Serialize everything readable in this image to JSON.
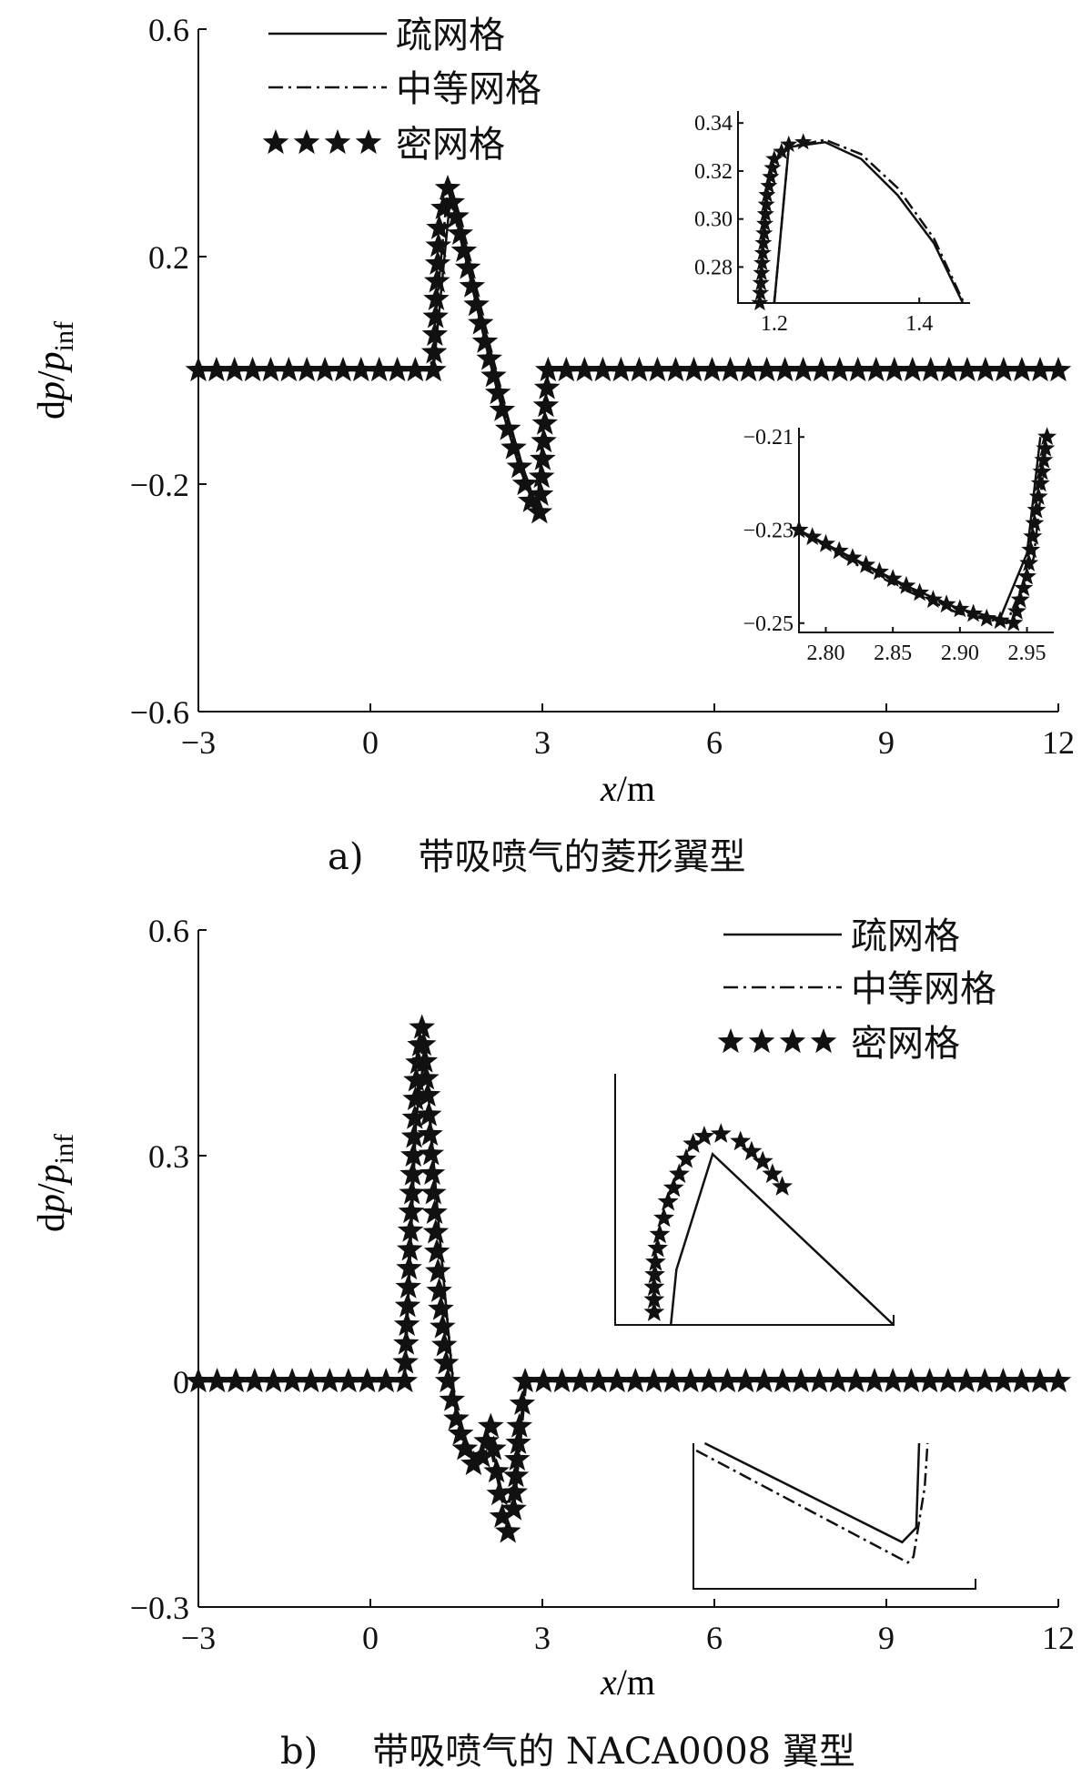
{
  "chart_data": [
    {
      "type": "line",
      "panel": "a",
      "caption_label": "a)",
      "caption": "带吸喷气的菱形翼型",
      "xlabel_italic": "x",
      "xlabel_unit": "/m",
      "ylabel_main": "d",
      "ylabel_p": "p",
      "ylabel_slash": "/",
      "ylabel_sub": "inf",
      "xlim": [
        -3,
        12
      ],
      "ylim": [
        -0.6,
        0.6
      ],
      "xticks": [
        "−3",
        "0",
        "3",
        "6",
        "9",
        "12"
      ],
      "yticks": [
        "0.6",
        "0.2",
        "−0.2",
        "−0.6"
      ],
      "legend": [
        "疏网格",
        "中等网格",
        "密网格"
      ],
      "series": [
        {
          "name": "疏网格",
          "style": "solid",
          "x": [
            -3,
            1.1,
            1.4,
            1.7,
            2.0,
            2.3,
            2.6,
            2.9,
            3.1,
            12
          ],
          "y": [
            0,
            0,
            0.31,
            0.18,
            0.05,
            -0.07,
            -0.17,
            -0.25,
            0,
            0
          ]
        },
        {
          "name": "中等网格",
          "style": "dashdot",
          "x": [
            -3,
            1.05,
            1.35,
            1.7,
            2.0,
            2.3,
            2.6,
            2.92,
            3.1,
            12
          ],
          "y": [
            0,
            0,
            0.32,
            0.18,
            0.05,
            -0.07,
            -0.17,
            -0.25,
            0,
            0
          ]
        },
        {
          "name": "密网格",
          "style": "stars",
          "x": [
            -3,
            1.1,
            1.2,
            1.35,
            1.5,
            1.7,
            2.0,
            2.3,
            2.6,
            2.8,
            2.95,
            3.1,
            12
          ],
          "y": [
            0,
            0,
            0.25,
            0.32,
            0.27,
            0.18,
            0.05,
            -0.07,
            -0.17,
            -0.23,
            -0.25,
            0,
            0
          ]
        }
      ],
      "insets": [
        {
          "xlim": [
            1.15,
            1.47
          ],
          "ylim": [
            0.265,
            0.345
          ],
          "xticks": [
            "1.2",
            "1.4"
          ],
          "yticks": [
            "0.34",
            "0.32",
            "0.30",
            "0.28"
          ],
          "series": [
            {
              "name": "疏网格",
              "x": [
                1.2,
                1.22,
                1.27,
                1.32,
                1.37,
                1.42,
                1.46
              ],
              "y": [
                0.265,
                0.33,
                0.332,
                0.325,
                0.31,
                0.29,
                0.265
              ]
            },
            {
              "name": "中等网格",
              "x": [
                1.2,
                1.22,
                1.27,
                1.32,
                1.37,
                1.42,
                1.46
              ],
              "y": [
                0.265,
                0.33,
                0.333,
                0.327,
                0.313,
                0.292,
                0.266
              ]
            },
            {
              "name": "密网格",
              "x": [
                1.18,
                1.185,
                1.19,
                1.2,
                1.22,
                1.24
              ],
              "y": [
                0.265,
                0.29,
                0.31,
                0.325,
                0.331,
                0.332
              ]
            }
          ]
        },
        {
          "xlim": [
            2.78,
            2.97
          ],
          "ylim": [
            -0.252,
            -0.208
          ],
          "xticks": [
            "2.80",
            "2.85",
            "2.90",
            "2.95"
          ],
          "yticks": [
            "−0.21",
            "−0.23",
            "−0.25"
          ],
          "series": [
            {
              "name": "疏网格",
              "x": [
                2.78,
                2.82,
                2.86,
                2.9,
                2.93,
                2.95,
                2.96
              ],
              "y": [
                -0.23,
                -0.236,
                -0.242,
                -0.247,
                -0.249,
                -0.235,
                -0.21
              ]
            },
            {
              "name": "中等网格",
              "x": [
                2.78,
                2.82,
                2.86,
                2.9,
                2.935,
                2.955,
                2.965
              ],
              "y": [
                -0.23,
                -0.237,
                -0.243,
                -0.248,
                -0.25,
                -0.236,
                -0.21
              ]
            },
            {
              "name": "密网格",
              "x": [
                2.78,
                2.8,
                2.82,
                2.84,
                2.86,
                2.88,
                2.9,
                2.92,
                2.94,
                2.95,
                2.96,
                2.965
              ],
              "y": [
                -0.23,
                -0.233,
                -0.236,
                -0.239,
                -0.242,
                -0.245,
                -0.247,
                -0.249,
                -0.25,
                -0.24,
                -0.22,
                -0.21
              ]
            }
          ]
        }
      ]
    },
    {
      "type": "line",
      "panel": "b",
      "caption_label": "b)",
      "caption": "带吸喷气的 NACA0008 翼型",
      "xlabel_italic": "x",
      "xlabel_unit": "/m",
      "ylabel_main": "d",
      "ylabel_p": "p",
      "ylabel_slash": "/",
      "ylabel_sub": "inf",
      "xlim": [
        -3,
        12
      ],
      "ylim": [
        -0.3,
        0.6
      ],
      "xticks": [
        "−3",
        "0",
        "3",
        "6",
        "9",
        "12"
      ],
      "yticks": [
        "0.6",
        "0.3",
        "0",
        "−0.3"
      ],
      "legend": [
        "疏网格",
        "中等网格",
        "密网格"
      ],
      "series": [
        {
          "name": "疏网格",
          "style": "solid",
          "x": [
            -3,
            0.6,
            0.8,
            0.95,
            1.2,
            1.5,
            1.8,
            2.1,
            2.3,
            2.5,
            2.7,
            12
          ],
          "y": [
            0,
            0,
            0.35,
            0.44,
            0.2,
            -0.05,
            -0.1,
            -0.08,
            -0.15,
            -0.14,
            0,
            0
          ]
        },
        {
          "name": "中等网格",
          "style": "dashdot",
          "x": [
            -3,
            0.58,
            0.78,
            0.92,
            1.2,
            1.5,
            1.8,
            2.1,
            2.3,
            2.52,
            2.72,
            12
          ],
          "y": [
            0,
            0,
            0.36,
            0.45,
            0.2,
            -0.05,
            -0.1,
            -0.09,
            -0.16,
            -0.16,
            0,
            0
          ]
        },
        {
          "name": "密网格",
          "style": "stars",
          "x": [
            -3,
            0.6,
            0.7,
            0.8,
            0.9,
            1.0,
            1.1,
            1.2,
            1.35,
            1.5,
            1.65,
            1.8,
            1.95,
            2.1,
            2.2,
            2.3,
            2.4,
            2.5,
            2.6,
            2.7,
            12
          ],
          "y": [
            0,
            0,
            0.2,
            0.4,
            0.47,
            0.38,
            0.25,
            0.12,
            0.0,
            -0.05,
            -0.09,
            -0.11,
            -0.1,
            -0.06,
            -0.12,
            -0.18,
            -0.2,
            -0.17,
            -0.06,
            0,
            0
          ]
        }
      ],
      "insets": [
        {
          "xlim": [
            0,
            10
          ],
          "ylim": [
            0,
            10
          ],
          "xticks": [],
          "yticks": [],
          "series": [
            {
              "name": "疏网格",
              "x": [
                2,
                2.2,
                3.5,
                10
              ],
              "y": [
                0,
                2.2,
                6.8,
                0
              ]
            },
            {
              "name": "密网格",
              "x": [
                1.4,
                1.4,
                1.45,
                1.6,
                1.9,
                2.3,
                2.8,
                3.2,
                3.8,
                4.5,
                5.3,
                6.0
              ],
              "y": [
                0.5,
                1.5,
                2.5,
                3.6,
                4.9,
                6.0,
                7.2,
                7.5,
                7.6,
                7.3,
                6.5,
                5.5
              ]
            }
          ]
        },
        {
          "xlim": [
            0,
            10
          ],
          "ylim": [
            0,
            10
          ],
          "xticks": [],
          "yticks": [],
          "series": [
            {
              "name": "疏网格",
              "x": [
                0.4,
                7.4,
                7.9,
                8.0
              ],
              "y": [
                10,
                3.2,
                4.2,
                10
              ]
            },
            {
              "name": "中等网格",
              "x": [
                0.1,
                7.6,
                7.8,
                8.2,
                8.3
              ],
              "y": [
                9.5,
                1.8,
                2.2,
                7.0,
                10
              ]
            }
          ]
        }
      ]
    }
  ]
}
